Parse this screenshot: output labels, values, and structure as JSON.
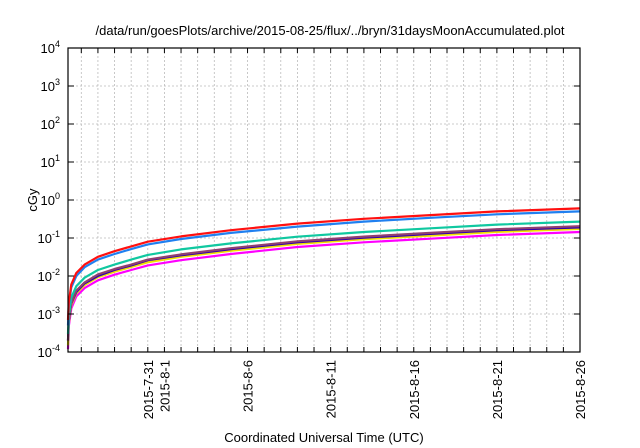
{
  "chart_data": {
    "type": "line",
    "title": "/data/run/goesPlots/archive/2015-08-25/flux/../bryn/31daysMoonAccumulated.plot",
    "xlabel": "Coordinated Universal Time (UTC)",
    "ylabel": "cGy",
    "yscale": "log",
    "ylim": [
      0.0001,
      10000
    ],
    "xlim_days_since_2015_7_26": [
      0.2,
      31
    ],
    "grid": true,
    "y_ticks": [
      {
        "value": 0.0001,
        "base": "10",
        "exp": "-4"
      },
      {
        "value": 0.001,
        "base": "10",
        "exp": "-3"
      },
      {
        "value": 0.01,
        "base": "10",
        "exp": "-2"
      },
      {
        "value": 0.1,
        "base": "10",
        "exp": "-1"
      },
      {
        "value": 1,
        "base": "10",
        "exp": "0"
      },
      {
        "value": 10,
        "base": "10",
        "exp": "1"
      },
      {
        "value": 100,
        "base": "10",
        "exp": "2"
      },
      {
        "value": 1000,
        "base": "10",
        "exp": "3"
      },
      {
        "value": 10000,
        "base": "10",
        "exp": "4"
      }
    ],
    "x_ticks": [
      {
        "day": 5,
        "label": "2015-7-31"
      },
      {
        "day": 6,
        "label": "2015-8-1"
      },
      {
        "day": 11,
        "label": "2015-8-6"
      },
      {
        "day": 16,
        "label": "2015-8-11"
      },
      {
        "day": 21,
        "label": "2015-8-16"
      },
      {
        "day": 26,
        "label": "2015-8-21"
      },
      {
        "day": 31,
        "label": "2015-8-26"
      }
    ],
    "x": [
      0.2,
      0.25,
      0.4,
      0.7,
      1.2,
      2,
      3,
      4,
      5,
      7,
      10,
      14,
      18,
      22,
      26,
      31
    ],
    "series": [
      {
        "color": "#ff00ff",
        "values": [
          0.00012,
          0.00048,
          0.0014,
          0.0029,
          0.0048,
          0.0077,
          0.0108,
          0.0144,
          0.019,
          0.026,
          0.038,
          0.058,
          0.077,
          0.096,
          0.12,
          0.144
        ]
      },
      {
        "color": "#f0e000",
        "values": [
          0.00015,
          0.00058,
          0.0017,
          0.0035,
          0.0058,
          0.0093,
          0.013,
          0.0174,
          0.023,
          0.032,
          0.046,
          0.07,
          0.093,
          0.116,
          0.145,
          0.174
        ]
      },
      {
        "color": "#3000b0",
        "values": [
          0.0002,
          0.00064,
          0.0019,
          0.0038,
          0.0064,
          0.01,
          0.0144,
          0.019,
          0.026,
          0.035,
          0.051,
          0.077,
          0.102,
          0.128,
          0.16,
          0.19
        ]
      },
      {
        "color": "#904070",
        "values": [
          0.0002,
          0.0007,
          0.002,
          0.0041,
          0.0068,
          0.011,
          0.0153,
          0.02,
          0.027,
          0.037,
          0.054,
          0.082,
          0.109,
          0.136,
          0.17,
          0.205
        ]
      },
      {
        "color": "#10c8a0",
        "values": [
          0.0003,
          0.0009,
          0.0027,
          0.0054,
          0.009,
          0.0144,
          0.02,
          0.027,
          0.036,
          0.05,
          0.072,
          0.108,
          0.144,
          0.18,
          0.225,
          0.27
        ]
      },
      {
        "color": "#2080f0",
        "values": [
          0.0005,
          0.0017,
          0.005,
          0.01,
          0.017,
          0.027,
          0.038,
          0.051,
          0.068,
          0.094,
          0.136,
          0.2,
          0.27,
          0.34,
          0.42,
          0.5
        ]
      },
      {
        "color": "#ff1010",
        "values": [
          0.0007,
          0.002,
          0.006,
          0.012,
          0.02,
          0.032,
          0.045,
          0.06,
          0.08,
          0.11,
          0.16,
          0.24,
          0.32,
          0.4,
          0.5,
          0.6
        ]
      }
    ]
  }
}
